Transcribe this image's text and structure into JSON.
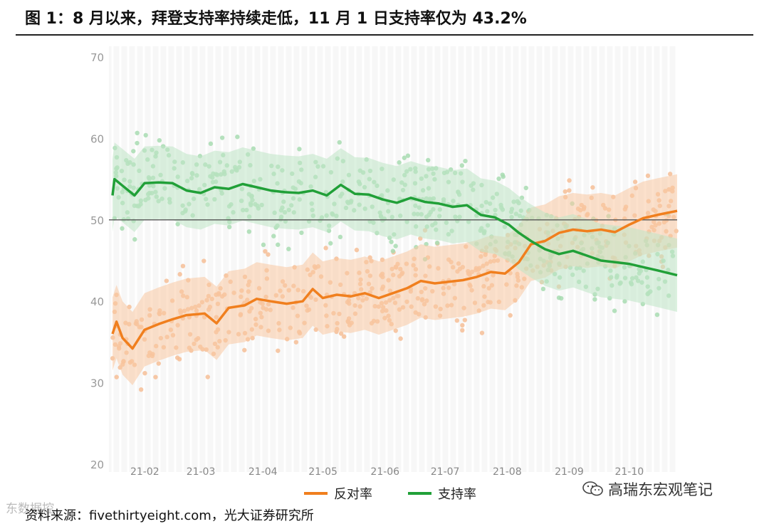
{
  "title": "图 1：8 月以来，拜登支持率持续走低，11 月 1 日支持率仅为 43.2%",
  "source": "资料来源：fivethirtyeight.com，光大证券研究所",
  "watermark": "高瑞东宏观笔记",
  "watermark_left": "东数据控",
  "chart_data": {
    "type": "line",
    "ylim": [
      20,
      70
    ],
    "yticks": [
      "20",
      "30",
      "40",
      "50",
      "60",
      "70"
    ],
    "xticks": [
      "21-02",
      "21-03",
      "21-04",
      "21-05",
      "21-06",
      "21-07",
      "21-08",
      "21-09",
      "21-10"
    ],
    "reference_line": 50,
    "legend_position": "bottom",
    "grid": true,
    "series": [
      {
        "name": "反对率",
        "color": "#f07f1e",
        "band_color": "#f9c9a2",
        "points": [
          [
            "2021-01-23",
            36.0
          ],
          [
            "2021-01-25",
            37.5
          ],
          [
            "2021-01-28",
            35.5
          ],
          [
            "2021-02-02",
            34.2
          ],
          [
            "2021-02-08",
            36.5
          ],
          [
            "2021-02-15",
            37.2
          ],
          [
            "2021-02-22",
            37.8
          ],
          [
            "2021-03-01",
            38.3
          ],
          [
            "2021-03-10",
            38.5
          ],
          [
            "2021-03-16",
            37.3
          ],
          [
            "2021-03-22",
            39.2
          ],
          [
            "2021-03-30",
            39.5
          ],
          [
            "2021-04-05",
            40.3
          ],
          [
            "2021-04-12",
            40.0
          ],
          [
            "2021-04-20",
            39.7
          ],
          [
            "2021-04-28",
            40.0
          ],
          [
            "2021-05-03",
            41.5
          ],
          [
            "2021-05-08",
            40.4
          ],
          [
            "2021-05-15",
            40.8
          ],
          [
            "2021-05-22",
            40.6
          ],
          [
            "2021-05-29",
            41.0
          ],
          [
            "2021-06-05",
            40.4
          ],
          [
            "2021-06-12",
            41.0
          ],
          [
            "2021-06-19",
            41.6
          ],
          [
            "2021-06-26",
            42.5
          ],
          [
            "2021-07-03",
            42.2
          ],
          [
            "2021-07-10",
            42.4
          ],
          [
            "2021-07-17",
            42.6
          ],
          [
            "2021-07-24",
            43.0
          ],
          [
            "2021-07-31",
            43.6
          ],
          [
            "2021-08-07",
            43.4
          ],
          [
            "2021-08-14",
            44.8
          ],
          [
            "2021-08-20",
            47.0
          ],
          [
            "2021-08-27",
            47.4
          ],
          [
            "2021-09-03",
            48.4
          ],
          [
            "2021-09-10",
            48.8
          ],
          [
            "2021-09-17",
            48.6
          ],
          [
            "2021-09-24",
            48.8
          ],
          [
            "2021-10-01",
            48.5
          ],
          [
            "2021-10-08",
            49.4
          ],
          [
            "2021-10-15",
            50.2
          ],
          [
            "2021-10-22",
            50.6
          ],
          [
            "2021-11-01",
            51.1
          ]
        ]
      },
      {
        "name": "支持率",
        "color": "#21a038",
        "band_color": "#bfe6c6",
        "points": [
          [
            "2021-01-23",
            53.0
          ],
          [
            "2021-01-24",
            55.0
          ],
          [
            "2021-01-28",
            54.2
          ],
          [
            "2021-02-03",
            53.0
          ],
          [
            "2021-02-08",
            54.5
          ],
          [
            "2021-02-15",
            54.6
          ],
          [
            "2021-02-22",
            54.5
          ],
          [
            "2021-03-01",
            53.6
          ],
          [
            "2021-03-08",
            53.3
          ],
          [
            "2021-03-15",
            54.0
          ],
          [
            "2021-03-22",
            53.8
          ],
          [
            "2021-03-29",
            54.4
          ],
          [
            "2021-04-05",
            54.0
          ],
          [
            "2021-04-12",
            53.6
          ],
          [
            "2021-04-19",
            53.4
          ],
          [
            "2021-04-26",
            53.3
          ],
          [
            "2021-05-03",
            53.6
          ],
          [
            "2021-05-10",
            53.0
          ],
          [
            "2021-05-17",
            54.3
          ],
          [
            "2021-05-24",
            53.2
          ],
          [
            "2021-05-31",
            53.1
          ],
          [
            "2021-06-07",
            52.5
          ],
          [
            "2021-06-14",
            52.1
          ],
          [
            "2021-06-21",
            52.7
          ],
          [
            "2021-06-28",
            52.2
          ],
          [
            "2021-07-05",
            52.0
          ],
          [
            "2021-07-12",
            51.6
          ],
          [
            "2021-07-19",
            51.8
          ],
          [
            "2021-07-26",
            50.6
          ],
          [
            "2021-08-02",
            50.3
          ],
          [
            "2021-08-09",
            49.4
          ],
          [
            "2021-08-14",
            48.4
          ],
          [
            "2021-08-20",
            47.4
          ],
          [
            "2021-08-27",
            46.4
          ],
          [
            "2021-09-03",
            45.8
          ],
          [
            "2021-09-10",
            46.2
          ],
          [
            "2021-09-17",
            45.6
          ],
          [
            "2021-09-24",
            45.0
          ],
          [
            "2021-10-01",
            44.8
          ],
          [
            "2021-10-08",
            44.6
          ],
          [
            "2021-10-15",
            44.2
          ],
          [
            "2021-10-22",
            43.8
          ],
          [
            "2021-11-01",
            43.2
          ]
        ]
      }
    ]
  }
}
